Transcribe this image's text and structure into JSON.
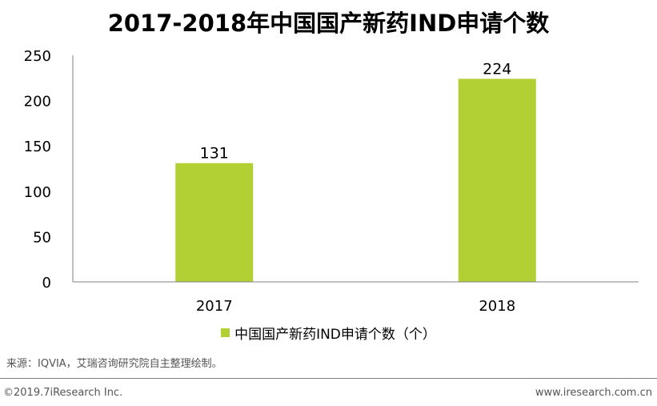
{
  "chart_data": {
    "type": "bar",
    "title": "2017-2018年中国国产新药IND申请个数",
    "categories": [
      "2017",
      "2018"
    ],
    "series": [
      {
        "name": "中国国产新药IND申请个数（个）",
        "values": [
          131,
          224
        ]
      }
    ],
    "data_labels": [
      "131",
      "224"
    ],
    "ylim": [
      0,
      250
    ],
    "yticks": [
      0,
      50,
      100,
      150,
      200,
      250
    ],
    "ytick_labels": [
      "0",
      "50",
      "100",
      "150",
      "200",
      "250"
    ],
    "grid": false,
    "legend_position": "bottom",
    "bar_color": "#b2cf34"
  },
  "source_note": "来源：IQVIA，艾瑞咨询研究院自主整理绘制。",
  "copyright": "©2019.7iResearch Inc.",
  "website": "www.iresearch.com.cn"
}
